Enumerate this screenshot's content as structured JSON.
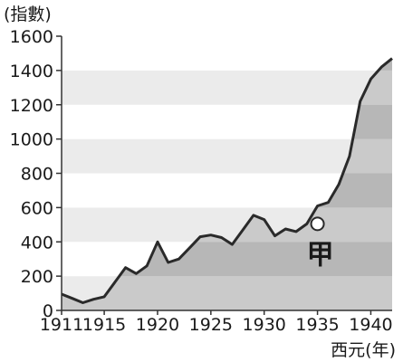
{
  "chart_data": {
    "type": "area",
    "ylabel": "(指數)",
    "xlabel": "西元(年)",
    "ylim": [
      0,
      1600
    ],
    "xlim": [
      1911,
      1942
    ],
    "y_ticks": [
      0,
      200,
      400,
      600,
      800,
      1000,
      1200,
      1400,
      1600
    ],
    "x_ticks": [
      1911,
      1915,
      1920,
      1925,
      1930,
      1935,
      1940
    ],
    "x_tick_labels": [
      "1911",
      "1915",
      "1920",
      "1925",
      "1930",
      "1935",
      "1940"
    ],
    "grid": "alternating horizontal bands",
    "series": [
      {
        "x": [
          1911,
          1912,
          1913,
          1914,
          1915,
          1916,
          1917,
          1918,
          1919,
          1920,
          1921,
          1922,
          1923,
          1924,
          1925,
          1926,
          1927,
          1928,
          1929,
          1930,
          1931,
          1932,
          1933,
          1934,
          1935,
          1936,
          1937,
          1938,
          1939,
          1940,
          1941,
          1942
        ],
        "values": [
          95,
          70,
          45,
          65,
          80,
          165,
          250,
          215,
          260,
          400,
          280,
          300,
          365,
          430,
          440,
          425,
          385,
          470,
          555,
          530,
          435,
          475,
          460,
          505,
          610,
          630,
          735,
          900,
          1220,
          1350,
          1420,
          1470
        ]
      }
    ],
    "annotations": [
      {
        "label": "甲",
        "x": 1935,
        "y": 505
      }
    ]
  },
  "colors": {
    "area_fill": "#b7b7b7",
    "band_light": "#ebebeb",
    "band_dark": "#d4d4d4",
    "line": "#2a2a2a",
    "axis": "#333333"
  }
}
